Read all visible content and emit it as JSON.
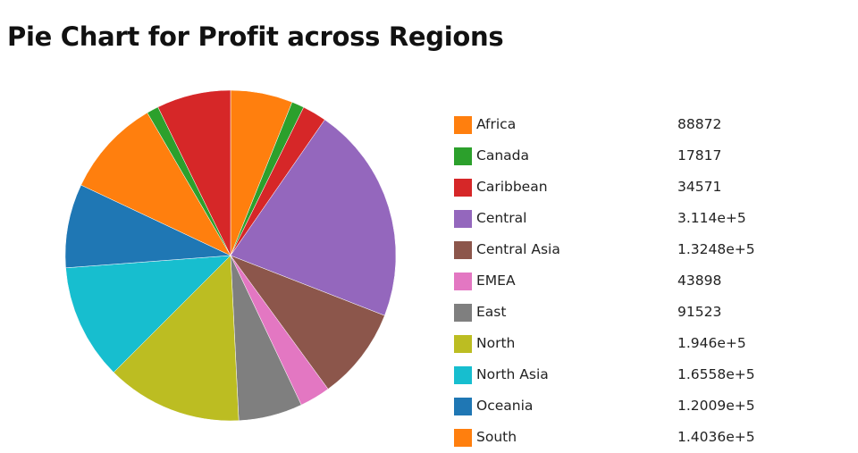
{
  "title": "Pie Chart for Profit across Regions",
  "chart_data": {
    "type": "pie",
    "title": "Pie Chart for Profit across Regions",
    "start": "12 o'clock",
    "direction": "clockwise",
    "legend_position": "right",
    "slices": [
      {
        "label": "Africa",
        "value": 88872,
        "display": "88872",
        "color": "#ff7f0e"
      },
      {
        "label": "Canada",
        "value": 17817,
        "display": "17817",
        "color": "#2ca02c"
      },
      {
        "label": "Caribbean",
        "value": 34571,
        "display": "34571",
        "color": "#d62728"
      },
      {
        "label": "Central",
        "value": 311400,
        "display": "3.114e+5",
        "color": "#9467bd"
      },
      {
        "label": "Central Asia",
        "value": 132480,
        "display": "1.3248e+5",
        "color": "#8c564b"
      },
      {
        "label": "EMEA",
        "value": 43898,
        "display": "43898",
        "color": "#e377c2"
      },
      {
        "label": "East",
        "value": 91523,
        "display": "91523",
        "color": "#7f7f7f"
      },
      {
        "label": "North",
        "value": 194600,
        "display": "1.946e+5",
        "color": "#bcbd22"
      },
      {
        "label": "North Asia",
        "value": 165580,
        "display": "1.6558e+5",
        "color": "#17becf"
      },
      {
        "label": "Oceania",
        "value": 120090,
        "display": "1.2009e+5",
        "color": "#1f77b4"
      },
      {
        "label": "South",
        "value": 140360,
        "display": "1.4036e+5",
        "color": "#ff7f0e"
      },
      {
        "label": "",
        "value": 17000,
        "display": "",
        "color": "#2ca02c"
      },
      {
        "label": "",
        "value": 106000,
        "display": "",
        "color": "#d62728"
      }
    ]
  }
}
